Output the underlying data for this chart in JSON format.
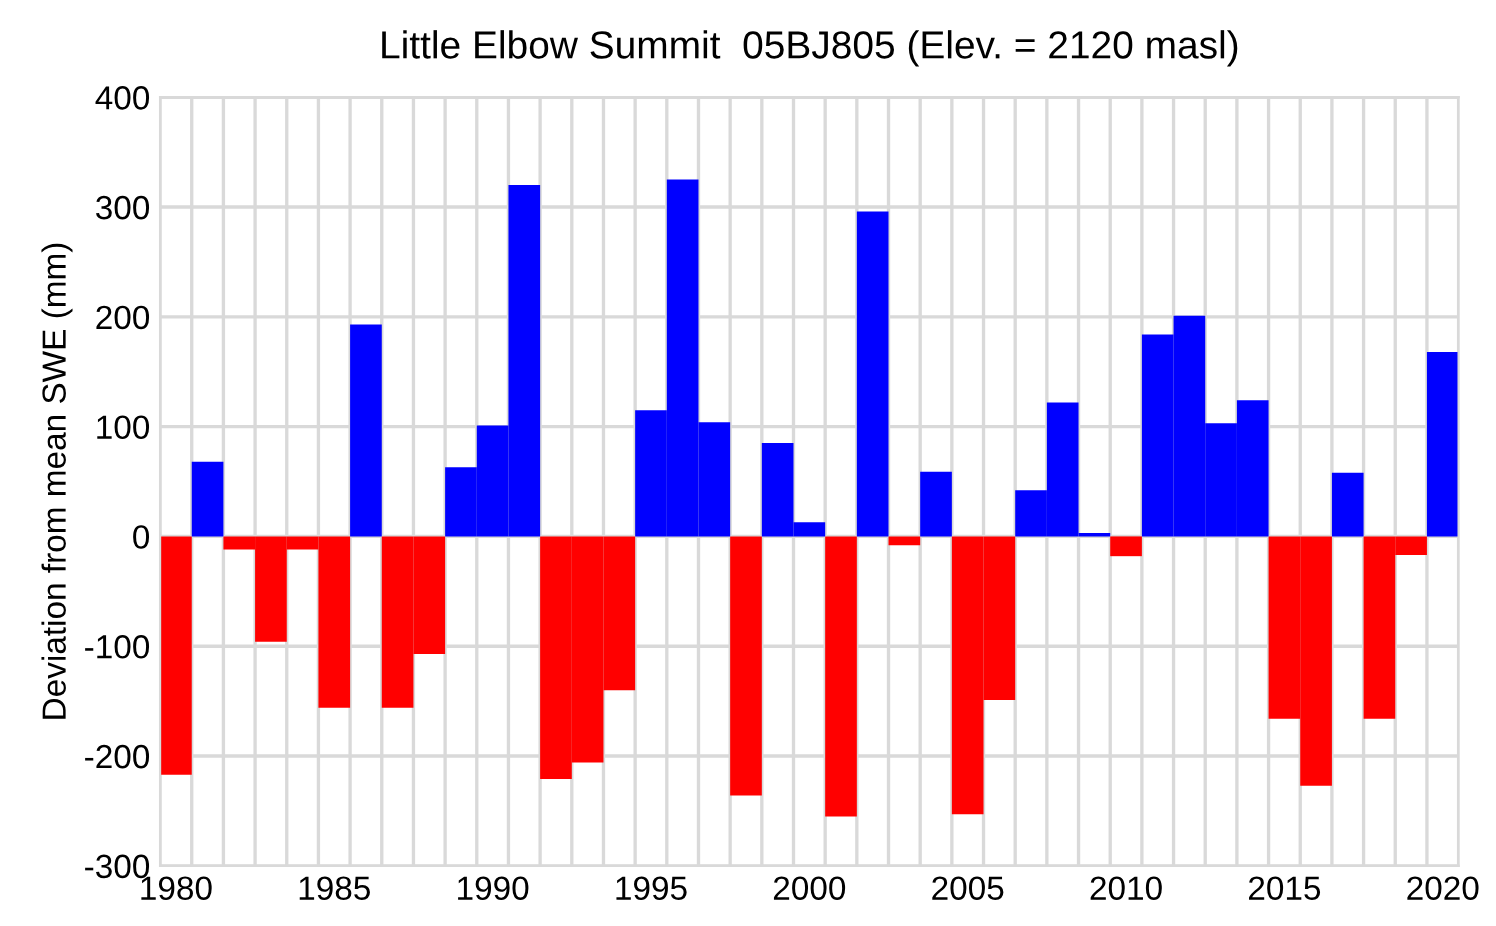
{
  "chart_data": {
    "type": "bar",
    "title": "Little Elbow Summit  05BJ805 (Elev. = 2120 masl)",
    "ylabel": "Deviation from mean SWE (mm)",
    "categories": [
      "1980",
      null,
      null,
      null,
      null,
      "1985",
      null,
      null,
      null,
      null,
      "1990",
      null,
      null,
      null,
      null,
      "1995",
      null,
      null,
      null,
      null,
      "2000",
      null,
      null,
      null,
      null,
      "2005",
      null,
      null,
      null,
      null,
      "2010",
      null,
      null,
      null,
      null,
      "2015",
      null,
      null,
      null,
      null,
      "2020"
    ],
    "values": [
      -217,
      68,
      -12,
      -96,
      -12,
      -156,
      193,
      -156,
      -107,
      63,
      101,
      320,
      -221,
      -206,
      -140,
      115,
      325,
      104,
      -236,
      85,
      13,
      -255,
      296,
      -8,
      59,
      -253,
      -149,
      42,
      122,
      3,
      -18,
      184,
      201,
      103,
      124,
      -166,
      -227,
      58,
      -166,
      -17,
      168
    ],
    "colors": [
      "#ff0000",
      "#0000ff",
      "#ff0000",
      "#ff0000",
      "#ff0000",
      "#ff0000",
      "#0000ff",
      "#ff0000",
      "#ff0000",
      "#0000ff",
      "#0000ff",
      "#0000ff",
      "#ff0000",
      "#ff0000",
      "#ff0000",
      "#0000ff",
      "#0000ff",
      "#0000ff",
      "#ff0000",
      "#0000ff",
      "#0000ff",
      "#ff0000",
      "#0000ff",
      "#ff0000",
      "#0000ff",
      "#ff0000",
      "#ff0000",
      "#0000ff",
      "#0000ff",
      "#0000ff",
      "#ff0000",
      "#0000ff",
      "#0000ff",
      "#0000ff",
      "#0000ff",
      "#ff0000",
      "#ff0000",
      "#0000ff",
      "#ff0000",
      "#ff0000",
      "#0000ff"
    ],
    "ylim": [
      -300,
      400
    ],
    "yticks": [
      -300,
      -200,
      -100,
      0,
      100,
      200,
      300,
      400
    ],
    "grid": true
  }
}
